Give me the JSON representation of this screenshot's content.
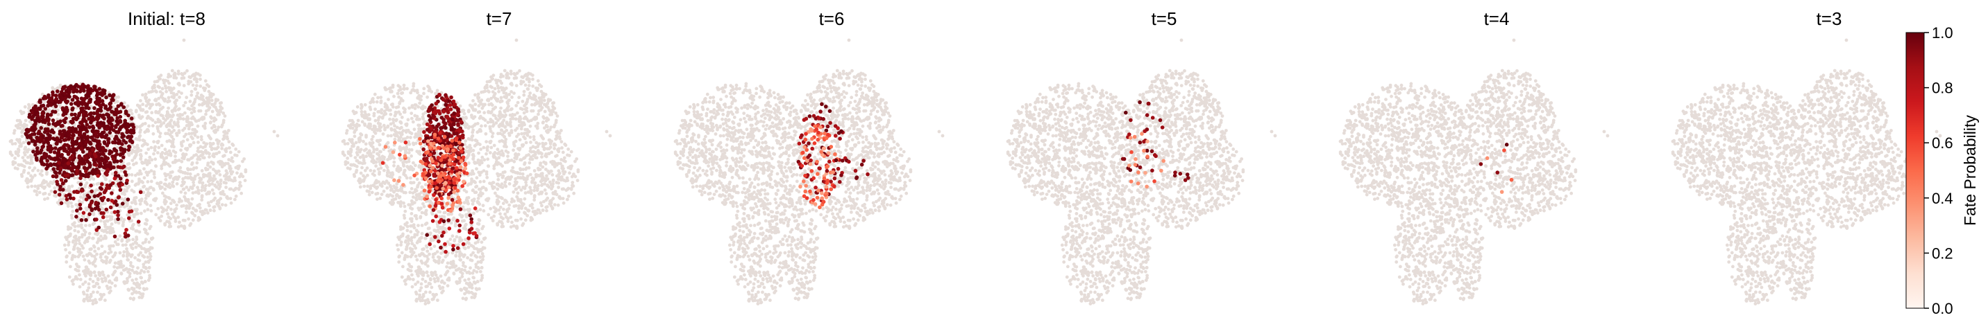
{
  "chart_data": {
    "type": "scatter",
    "colormap": "Reds",
    "background_cell_color": "#e5dcd8",
    "panels": [
      {
        "title": "Initial: t=8",
        "highlight": "left-lobe"
      },
      {
        "title": "t=7",
        "highlight": "center-stripe"
      },
      {
        "title": "t=6",
        "highlight": "center-right"
      },
      {
        "title": "t=5",
        "highlight": "sparse-center"
      },
      {
        "title": "t=4",
        "highlight": "very-sparse"
      },
      {
        "title": "t=3",
        "highlight": "none"
      }
    ],
    "colorbar": {
      "label": "Fate Probability",
      "ticks": [
        "0.0",
        "0.2",
        "0.4",
        "0.6",
        "0.8",
        "1.0"
      ],
      "range": [
        0,
        1
      ],
      "colors": [
        "#fff5f0",
        "#fee0d2",
        "#fcbba1",
        "#fc9272",
        "#fb6a4a",
        "#ef3b2c",
        "#cb181d",
        "#a50f15",
        "#67000d"
      ]
    }
  }
}
